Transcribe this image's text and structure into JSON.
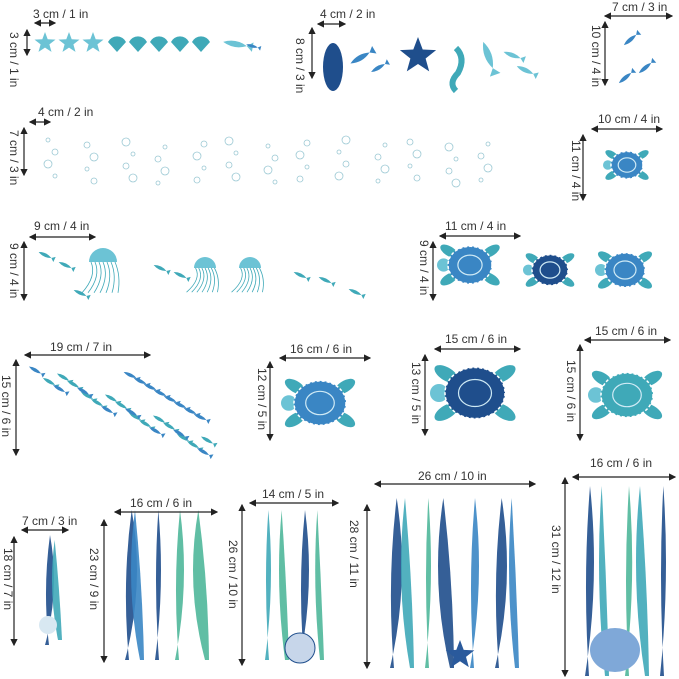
{
  "colors": {
    "navy": "#1f4e8c",
    "blue": "#3a86c4",
    "teal": "#3fa9b8",
    "aqua": "#6cc3d5",
    "green": "#4fb79a",
    "text": "#333333"
  },
  "stickers": [
    {
      "name": "starfish-shells-small-fish",
      "width": "3 cm / 1 in",
      "height": "3 cm / 1 in"
    },
    {
      "name": "shell-fish-starfish-seahorse",
      "width": "4 cm / 2 in",
      "height": "8 cm / 3 in"
    },
    {
      "name": "angelfish",
      "width": "7 cm / 3 in",
      "height": "10 cm / 4 in"
    },
    {
      "name": "bubbles",
      "width": "4 cm / 2 in",
      "height": "7 cm / 3 in"
    },
    {
      "name": "small-turtle",
      "width": "10 cm / 4 in",
      "height": "11 cm / 4 in"
    },
    {
      "name": "jellyfish",
      "width": "9 cm / 4 in",
      "height": "9 cm / 4 in"
    },
    {
      "name": "three-turtles",
      "width": "11 cm / 4 in",
      "height": "9 cm / 4 in"
    },
    {
      "name": "fish-school",
      "width": "19 cm / 7 in",
      "height": "15 cm / 6 in"
    },
    {
      "name": "turtle-16",
      "width": "16 cm / 6 in",
      "height": "12 cm / 5 in"
    },
    {
      "name": "turtle-15-round",
      "width": "15 cm / 6 in",
      "height": "13 cm / 5 in"
    },
    {
      "name": "turtle-15-teal",
      "width": "15 cm / 6 in",
      "height": "15 cm / 6 in"
    },
    {
      "name": "seaweed-shell",
      "width": "7 cm / 3 in",
      "height": "18 cm / 7 in"
    },
    {
      "name": "seaweed-leafy",
      "width": "16 cm / 6 in",
      "height": "23 cm / 9 in"
    },
    {
      "name": "seaweed-conch",
      "width": "14 cm / 5 in",
      "height": "26 cm / 10 in"
    },
    {
      "name": "seaweed-coral-starfish",
      "width": "26 cm / 10 in",
      "height": "28 cm / 11 in"
    },
    {
      "name": "seaweed-tall",
      "width": "16 cm / 6 in",
      "height": "31 cm / 12 in"
    }
  ]
}
